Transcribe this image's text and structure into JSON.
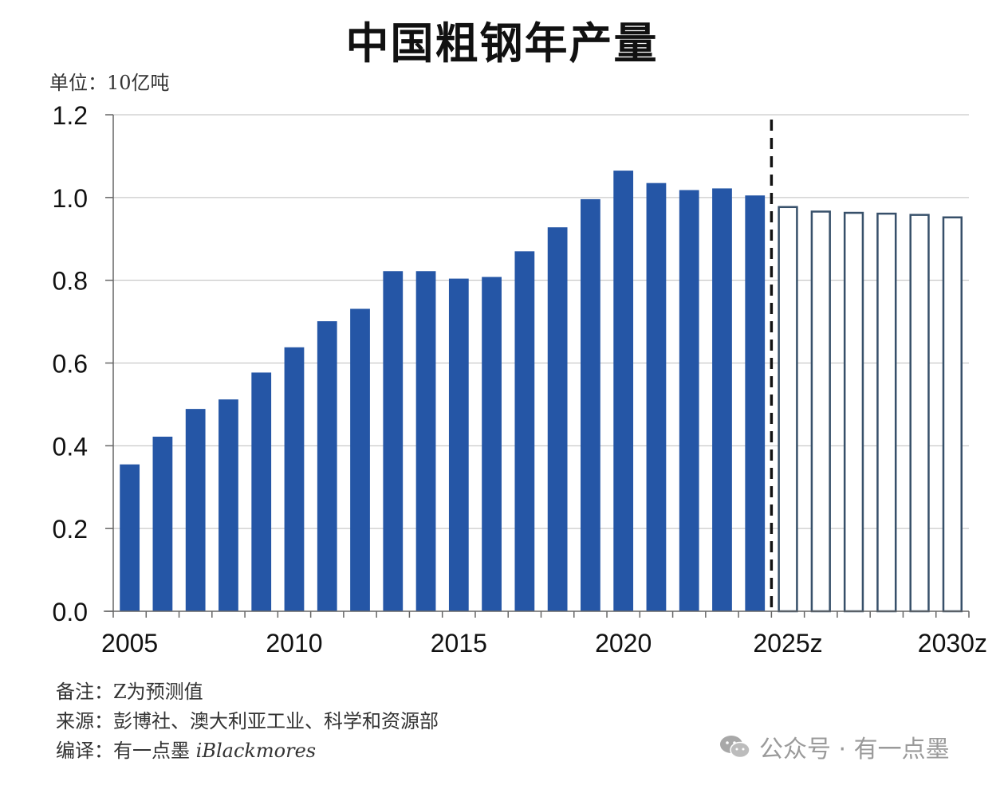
{
  "title": "中国粗钢年产量",
  "unit_label": "单位：10亿吨",
  "notes": {
    "note": "备注：Z为预测值",
    "source": "来源：彭博社、澳大利亚工业、科学和资源部",
    "translator_prefix": "编译：有一点墨",
    "translator_name": "iBlackmores"
  },
  "watermark": "公众号 · 有一点墨",
  "colors": {
    "actual": "#2556A6",
    "forecast_stroke": "#37506A",
    "grid": "#bdbdbd"
  },
  "chart_data": {
    "type": "bar",
    "title": "中国粗钢年产量",
    "ylabel": "单位：10亿吨",
    "ylim": [
      0,
      1.2
    ],
    "yticks": [
      "0.0",
      "0.2",
      "0.4",
      "0.6",
      "0.8",
      "1.0",
      "1.2"
    ],
    "grid": true,
    "categories": [
      "2005",
      "2006",
      "2007",
      "2008",
      "2009",
      "2010",
      "2011",
      "2012",
      "2013",
      "2014",
      "2015",
      "2016",
      "2017",
      "2018",
      "2019",
      "2020",
      "2021",
      "2022",
      "2023",
      "2024",
      "2025z",
      "2026z",
      "2027z",
      "2028z",
      "2029z",
      "2030z"
    ],
    "xtick_labels": [
      "2005",
      "2010",
      "2015",
      "2020",
      "2025z",
      "2030z"
    ],
    "series": [
      {
        "values": [
          0.355,
          0.422,
          0.489,
          0.512,
          0.577,
          0.638,
          0.701,
          0.731,
          0.822,
          0.822,
          0.804,
          0.808,
          0.87,
          0.928,
          0.996,
          1.065,
          1.035,
          1.018,
          1.022,
          1.005,
          null,
          null,
          null,
          null,
          null,
          null
        ]
      },
      {
        "values": [
          null,
          null,
          null,
          null,
          null,
          null,
          null,
          null,
          null,
          null,
          null,
          null,
          null,
          null,
          null,
          null,
          null,
          null,
          null,
          null,
          0.977,
          0.966,
          0.963,
          0.961,
          0.958,
          0.952
        ]
      }
    ],
    "divider_after": "2024"
  }
}
